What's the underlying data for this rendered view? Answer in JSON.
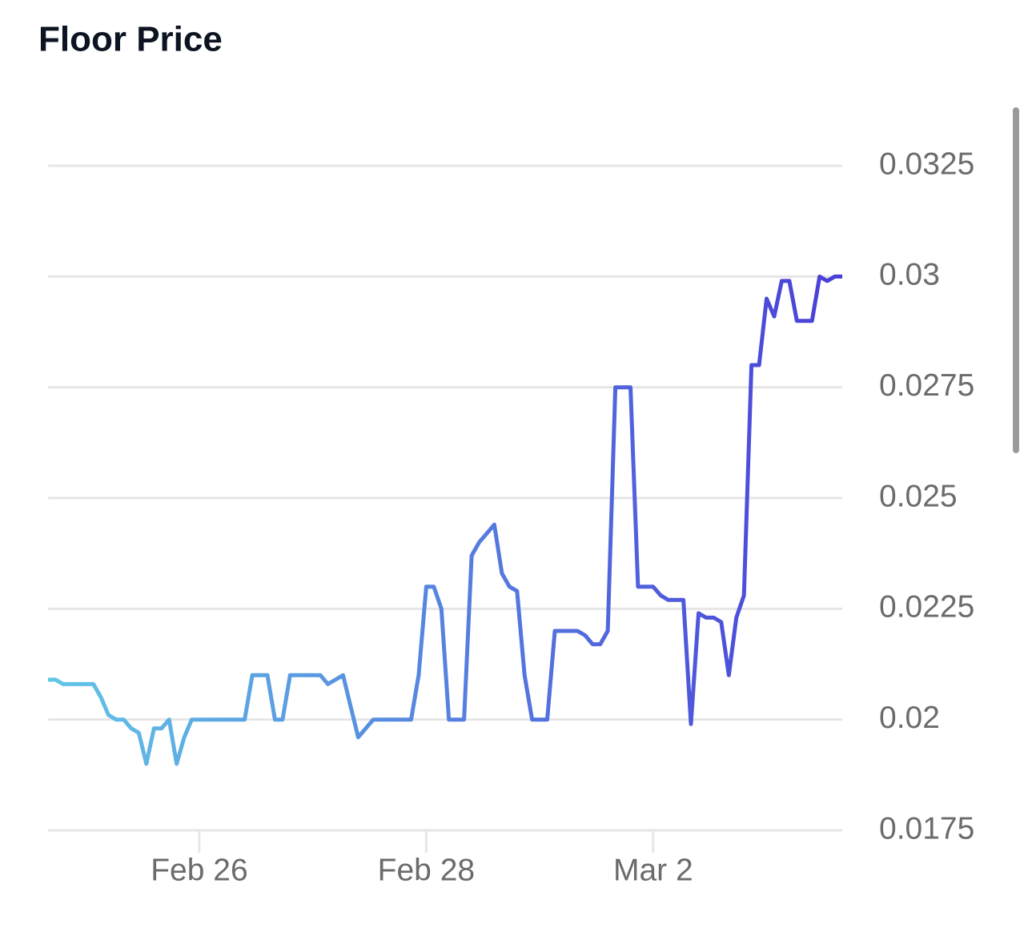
{
  "chart_data": {
    "type": "line",
    "title": "Floor Price",
    "categories": [
      null,
      null,
      null,
      null,
      null,
      null,
      null,
      null,
      null,
      null,
      null,
      null,
      null,
      null,
      null,
      null,
      null,
      null,
      null,
      null,
      "Feb 26",
      null,
      null,
      null,
      null,
      null,
      null,
      null,
      null,
      null,
      null,
      null,
      null,
      null,
      null,
      null,
      null,
      null,
      null,
      null,
      null,
      null,
      null,
      null,
      null,
      null,
      null,
      null,
      null,
      null,
      "Feb 28",
      null,
      null,
      null,
      null,
      null,
      null,
      null,
      null,
      null,
      null,
      null,
      null,
      null,
      null,
      null,
      null,
      null,
      null,
      null,
      null,
      null,
      null,
      null,
      null,
      null,
      null,
      null,
      null,
      null,
      "Mar 2",
      null,
      null,
      null,
      null,
      null,
      null,
      null,
      null,
      null,
      null,
      null,
      null,
      null,
      null,
      null,
      null,
      null,
      null,
      null,
      null,
      null,
      null,
      null,
      null,
      null
    ],
    "values": [
      0.0209,
      0.0209,
      0.0208,
      0.0208,
      0.0208,
      0.0208,
      0.0208,
      0.0205,
      0.0201,
      0.02,
      0.02,
      0.0198,
      0.0197,
      0.019,
      0.0198,
      0.0198,
      0.02,
      0.019,
      0.0196,
      0.02,
      0.02,
      0.02,
      0.02,
      0.02,
      0.02,
      0.02,
      0.02,
      0.021,
      0.021,
      0.021,
      0.02,
      0.02,
      0.021,
      0.021,
      0.021,
      0.021,
      0.021,
      0.0208,
      0.0209,
      0.021,
      0.0203,
      0.0196,
      0.0198,
      0.02,
      0.02,
      0.02,
      0.02,
      0.02,
      0.02,
      0.021,
      0.023,
      0.023,
      0.0225,
      0.02,
      0.02,
      0.02,
      0.0237,
      0.024,
      0.0242,
      0.0244,
      0.0233,
      0.023,
      0.0229,
      0.021,
      0.02,
      0.02,
      0.02,
      0.022,
      0.022,
      0.022,
      0.022,
      0.0219,
      0.0217,
      0.0217,
      0.022,
      0.0275,
      0.0275,
      0.0275,
      0.023,
      0.023,
      0.023,
      0.0228,
      0.0227,
      0.0227,
      0.0227,
      0.0199,
      0.0224,
      0.0223,
      0.0223,
      0.0222,
      0.021,
      0.0223,
      0.0228,
      0.028,
      0.028,
      0.0295,
      0.0291,
      0.0299,
      0.0299,
      0.029,
      0.029,
      0.029,
      0.03,
      0.0299,
      0.03,
      0.03
    ],
    "colors": [
      "#62c6e6",
      "#4a3ed8"
    ],
    "ylim": [
      0.0175,
      0.0335
    ],
    "yticks": [
      0.0175,
      0.02,
      0.0225,
      0.025,
      0.0275,
      0.03,
      0.0325
    ],
    "grid": true
  }
}
